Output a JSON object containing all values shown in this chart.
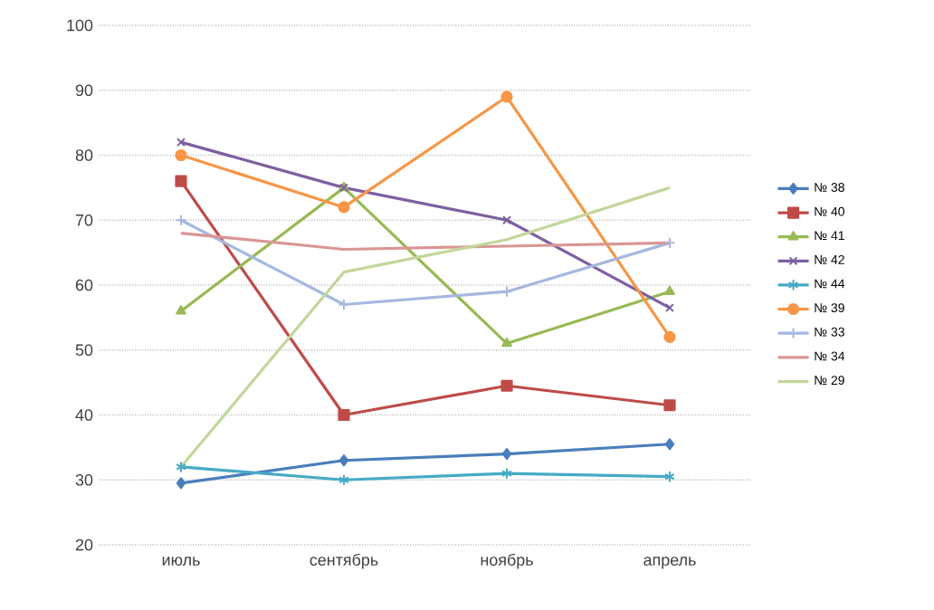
{
  "chart_data": {
    "type": "line",
    "categories": [
      "июль",
      "сентябрь",
      "ноябрь",
      "апрель"
    ],
    "ylim": [
      20,
      100
    ],
    "yticks": [
      20,
      30,
      40,
      50,
      60,
      70,
      80,
      90,
      100
    ],
    "grid": "y",
    "legend": "right",
    "series": [
      {
        "name": "№ 38",
        "color": "#4a7ebb",
        "marker": "diamond",
        "values": [
          29.5,
          33,
          34,
          35.5
        ]
      },
      {
        "name": "№ 40",
        "color": "#be4b48",
        "marker": "square",
        "values": [
          76,
          40,
          44.5,
          41.5
        ]
      },
      {
        "name": "№ 41",
        "color": "#98b954",
        "marker": "triangle",
        "values": [
          56,
          75,
          51,
          59
        ]
      },
      {
        "name": "№ 42",
        "color": "#7d60a0",
        "marker": "cross",
        "values": [
          82,
          75,
          70,
          56.5
        ]
      },
      {
        "name": "№ 44",
        "color": "#46aac5",
        "marker": "cross",
        "values": [
          32,
          30,
          31,
          30.5
        ]
      },
      {
        "name": "№ 39",
        "color": "#f79646",
        "marker": "circle",
        "values": [
          80,
          72,
          89,
          52
        ]
      },
      {
        "name": "№ 33",
        "color": "#a5b8e0",
        "marker": "plus",
        "values": [
          70,
          57,
          59,
          66.5
        ]
      },
      {
        "name": "№ 34",
        "color": "#d99694",
        "marker": "none",
        "values": [
          68,
          65.5,
          66,
          66.5
        ]
      },
      {
        "name": "№ 29",
        "color": "#c3d69b",
        "marker": "none",
        "values": [
          32,
          62,
          67,
          75
        ]
      }
    ]
  }
}
